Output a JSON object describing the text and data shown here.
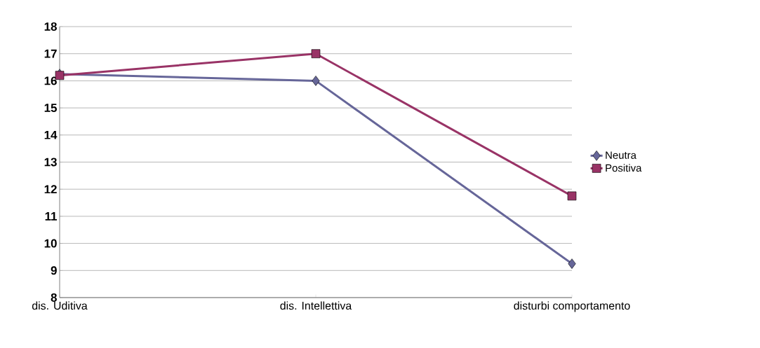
{
  "chart_data": {
    "type": "line",
    "categories": [
      "dis. Uditiva",
      "dis. Intellettiva",
      "disturbi comportamento"
    ],
    "series": [
      {
        "name": "Neutra",
        "color": "#666699",
        "marker": "diamond",
        "values": [
          16.25,
          16.0,
          9.25
        ]
      },
      {
        "name": "Positiva",
        "color": "#993366",
        "marker": "square",
        "values": [
          16.2,
          17.0,
          11.75
        ]
      }
    ],
    "ylim": [
      8,
      18
    ],
    "yticks": [
      8,
      9,
      10,
      11,
      12,
      13,
      14,
      15,
      16,
      17,
      18
    ],
    "grid": "y",
    "legend": "right",
    "line_style": "solid"
  }
}
